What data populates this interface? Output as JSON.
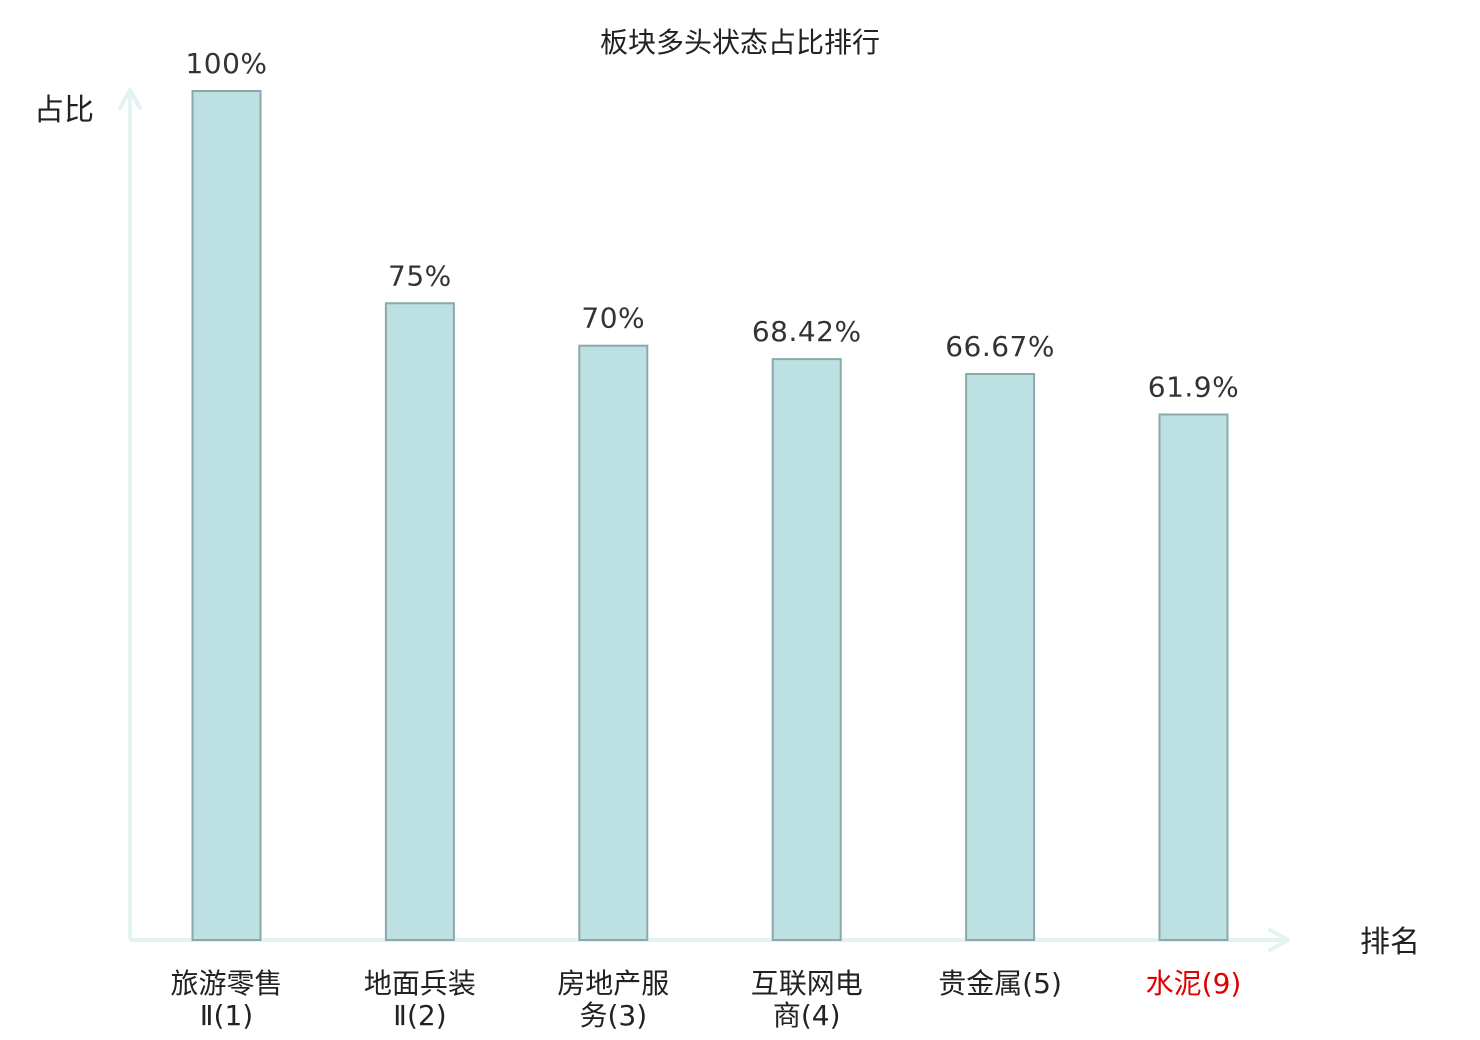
{
  "chart_data": {
    "type": "bar",
    "title": "板块多头状态占比排行",
    "ylabel": "占比",
    "xlabel": "排名",
    "ylim": [
      0,
      100
    ],
    "grid": false,
    "legend": "none",
    "categories": [
      [
        "旅游零售",
        "Ⅱ(1)"
      ],
      [
        "地面兵装",
        "Ⅱ(2)"
      ],
      [
        "房地产服",
        "务(3)"
      ],
      [
        "互联网电",
        "商(4)"
      ],
      [
        "贵金属(5)"
      ],
      [
        "水泥(9)"
      ]
    ],
    "values": [
      100,
      75,
      70,
      68.42,
      66.67,
      61.9
    ],
    "value_labels": [
      "100%",
      "75%",
      "70%",
      "68.42%",
      "66.67%",
      "61.9%"
    ],
    "highlight_index": 5
  },
  "colors": {
    "bar_fill": "#bde0e3",
    "bar_stroke": "#8aa9ac",
    "axis": "#e3f3f1",
    "text": "#222222",
    "highlight": "#e00000"
  }
}
